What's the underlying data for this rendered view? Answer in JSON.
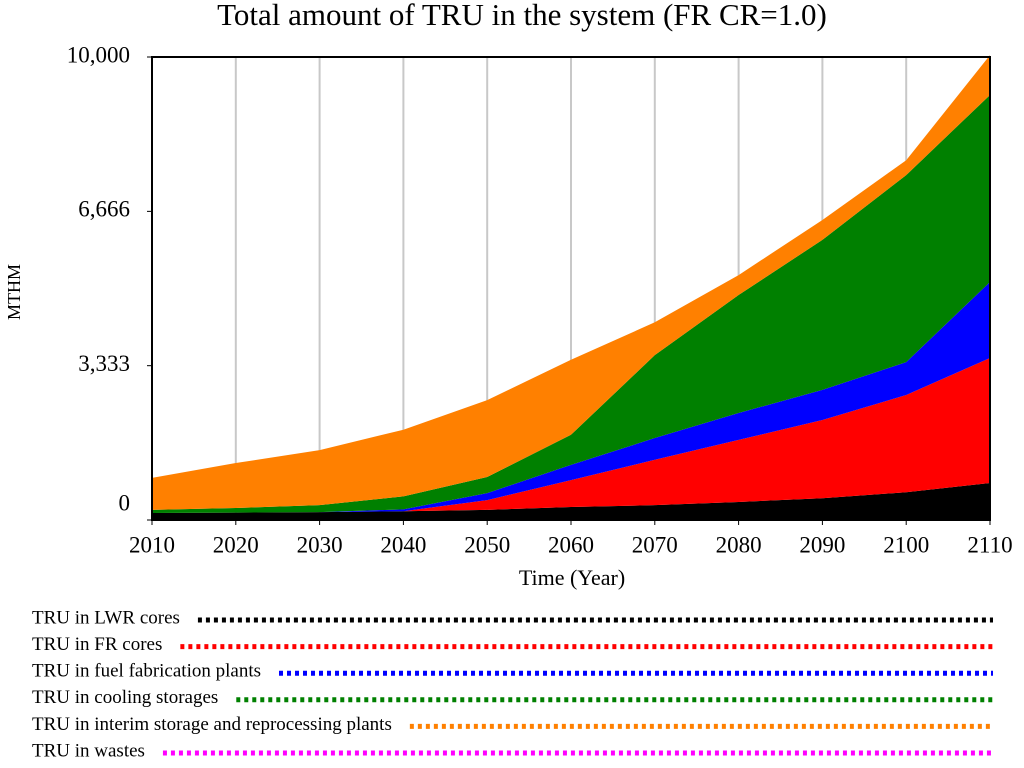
{
  "chart_data": {
    "type": "stacked-area",
    "title": "Total amount of TRU in the system (FR CR=1.0)",
    "x_label": "Time (Year)",
    "y_label": "MTHM",
    "x": [
      2010,
      2020,
      2030,
      2040,
      2050,
      2060,
      2070,
      2080,
      2090,
      2100,
      2110
    ],
    "xlim": [
      2010,
      2110
    ],
    "xticks": [
      2010,
      2020,
      2030,
      2040,
      2050,
      2060,
      2070,
      2080,
      2090,
      2100,
      2110
    ],
    "ylim": [
      0,
      10000
    ],
    "yticks": [
      0,
      {
        "value": 3333,
        "label": "3,333"
      },
      {
        "value": 6666,
        "label": "6,666"
      },
      {
        "value": 10000,
        "label": "10,000"
      }
    ],
    "grid": "x",
    "series": [
      {
        "name": "TRU in LWR cores",
        "color": "#000000",
        "values": [
          150,
          160,
          170,
          190,
          220,
          280,
          320,
          390,
          470,
          600,
          800
        ]
      },
      {
        "name": "TRU in FR cores",
        "color": "#ff0000",
        "values": [
          0,
          0,
          0,
          0,
          210,
          580,
          980,
          1340,
          1690,
          2100,
          2700
        ]
      },
      {
        "name": "TRU in fuel fabrication plants",
        "color": "#0000ff",
        "values": [
          0,
          0,
          0,
          40,
          150,
          330,
          470,
          580,
          650,
          710,
          1640
        ]
      },
      {
        "name": "TRU in cooling storages",
        "color": "#008000",
        "values": [
          70,
          100,
          150,
          280,
          350,
          650,
          1790,
          2550,
          3240,
          4040,
          4040
        ]
      },
      {
        "name": "TRU in interim storage and reprocessing plants",
        "color": "#ff8000",
        "values": [
          690,
          970,
          1190,
          1440,
          1660,
          1620,
          710,
          430,
          430,
          320,
          860
        ]
      },
      {
        "name": "TRU in wastes",
        "color": "#ff00ff",
        "values": [
          0,
          0,
          0,
          0,
          0,
          0,
          0,
          0,
          0,
          0,
          0
        ]
      }
    ]
  }
}
